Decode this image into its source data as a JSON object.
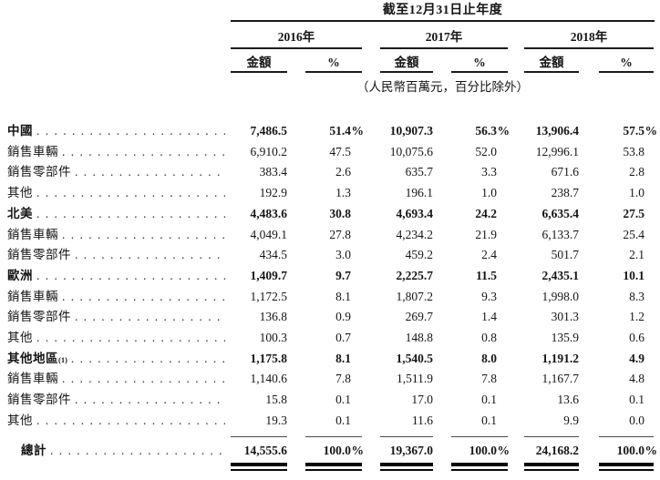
{
  "header": {
    "title": "截至12月31日止年度",
    "years": [
      {
        "label": "2016年"
      },
      {
        "label": "2017年"
      },
      {
        "label": "2018年"
      }
    ],
    "amount_label": "金額",
    "percent_label": "%",
    "unit_note": "（人民幣百萬元，百分比除外）"
  },
  "table": {
    "pct_sign": "%",
    "columns": [
      "2016 金額",
      "2016 %",
      "2017 金額",
      "2017 %",
      "2018 金額",
      "2018 %"
    ],
    "rows": [
      {
        "label": "中國",
        "bold": true,
        "pct": true,
        "values": [
          "7,486.5",
          "51.4",
          "10,907.3",
          "56.3",
          "13,906.4",
          "57.5"
        ]
      },
      {
        "label": "銷售車輛",
        "values": [
          "6,910.2",
          "47.5",
          "10,075.6",
          "52.0",
          "12,996.1",
          "53.8"
        ]
      },
      {
        "label": "銷售零部件",
        "values": [
          "383.4",
          "2.6",
          "635.7",
          "3.3",
          "671.6",
          "2.8"
        ]
      },
      {
        "label": "其他",
        "values": [
          "192.9",
          "1.3",
          "196.1",
          "1.0",
          "238.7",
          "1.0"
        ]
      },
      {
        "label": "北美",
        "bold": true,
        "values": [
          "4,483.6",
          "30.8",
          "4,693.4",
          "24.2",
          "6,635.4",
          "27.5"
        ]
      },
      {
        "label": "銷售車輛",
        "values": [
          "4,049.1",
          "27.8",
          "4,234.2",
          "21.9",
          "6,133.7",
          "25.4"
        ]
      },
      {
        "label": "銷售零部件",
        "values": [
          "434.5",
          "3.0",
          "459.2",
          "2.4",
          "501.7",
          "2.1"
        ]
      },
      {
        "label": "歐洲",
        "bold": true,
        "values": [
          "1,409.7",
          "9.7",
          "2,225.7",
          "11.5",
          "2,435.1",
          "10.1"
        ]
      },
      {
        "label": "銷售車輛",
        "values": [
          "1,172.5",
          "8.1",
          "1,807.2",
          "9.3",
          "1,998.0",
          "8.3"
        ]
      },
      {
        "label": "銷售零部件",
        "values": [
          "136.8",
          "0.9",
          "269.7",
          "1.4",
          "301.3",
          "1.2"
        ]
      },
      {
        "label": "其他",
        "values": [
          "100.3",
          "0.7",
          "148.8",
          "0.8",
          "135.9",
          "0.6"
        ]
      },
      {
        "label": "其他地區",
        "sup": "(1)",
        "bold": true,
        "values": [
          "1,175.8",
          "8.1",
          "1,540.5",
          "8.0",
          "1,191.2",
          "4.9"
        ]
      },
      {
        "label": "銷售車輛",
        "values": [
          "1,140.6",
          "7.8",
          "1,511.9",
          "7.8",
          "1,167.7",
          "4.8"
        ]
      },
      {
        "label": "銷售零部件",
        "values": [
          "15.8",
          "0.1",
          "17.0",
          "0.1",
          "13.6",
          "0.1"
        ]
      },
      {
        "label": "其他",
        "values": [
          "19.3",
          "0.1",
          "11.6",
          "0.1",
          "9.9",
          "0.0"
        ]
      }
    ],
    "total_row": {
      "label": "總計",
      "bold": true,
      "pct": true,
      "values": [
        "14,555.6",
        "100.0",
        "19,367.0",
        "100.0",
        "24,168.2",
        "100.0"
      ]
    }
  }
}
